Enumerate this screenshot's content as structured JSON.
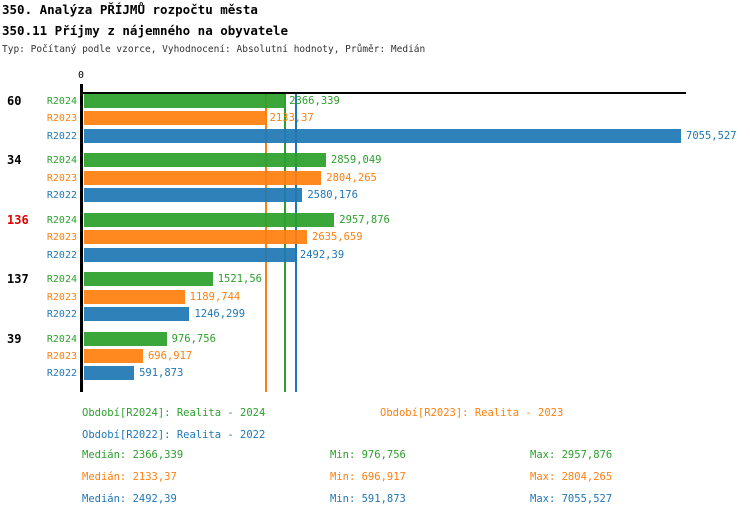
{
  "header": {
    "title": "350. Analýza PŘÍJMŮ rozpočtu města",
    "subtitle": "350.11 Příjmy z nájemného na obyvatele",
    "meta": "Typ: Počítaný podle vzorce, Vyhodnocení: Absolutní hodnoty, Průměr: Medián"
  },
  "colors": {
    "r2024": "#2ca02c",
    "r2023": "#ff7f0e",
    "r2022": "#1f77b4",
    "highlight": "#e00000",
    "axis": "#000000"
  },
  "chart_data": {
    "type": "bar",
    "orientation": "horizontal",
    "title": "350. Analýza PŘÍJMŮ rozpočtu města",
    "subtitle": "350.11 Příjmy z nájemného na obyvatele",
    "xlim": [
      0,
      7300
    ],
    "x_tick_labels": [
      "0"
    ],
    "series": [
      "R2024",
      "R2023",
      "R2022"
    ],
    "groups": [
      {
        "label": "60",
        "highlighted": false,
        "bars": [
          {
            "series": "R2024",
            "value": 2366.339,
            "value_label": "2366,339"
          },
          {
            "series": "R2023",
            "value": 2133.37,
            "value_label": "2133,37"
          },
          {
            "series": "R2022",
            "value": 7055.527,
            "value_label": "7055,527"
          }
        ]
      },
      {
        "label": "34",
        "highlighted": false,
        "bars": [
          {
            "series": "R2024",
            "value": 2859.049,
            "value_label": "2859,049"
          },
          {
            "series": "R2023",
            "value": 2804.265,
            "value_label": "2804,265"
          },
          {
            "series": "R2022",
            "value": 2580.176,
            "value_label": "2580,176"
          }
        ]
      },
      {
        "label": "136",
        "highlighted": true,
        "bars": [
          {
            "series": "R2024",
            "value": 2957.876,
            "value_label": "2957,876"
          },
          {
            "series": "R2023",
            "value": 2635.659,
            "value_label": "2635,659"
          },
          {
            "series": "R2022",
            "value": 2492.39,
            "value_label": "2492,39"
          }
        ]
      },
      {
        "label": "137",
        "highlighted": false,
        "bars": [
          {
            "series": "R2024",
            "value": 1521.56,
            "value_label": "1521,56"
          },
          {
            "series": "R2023",
            "value": 1189.744,
            "value_label": "1189,744"
          },
          {
            "series": "R2022",
            "value": 1246.299,
            "value_label": "1246,299"
          }
        ]
      },
      {
        "label": "39",
        "highlighted": false,
        "bars": [
          {
            "series": "R2024",
            "value": 976.756,
            "value_label": "976,756"
          },
          {
            "series": "R2023",
            "value": 696.917,
            "value_label": "696,917"
          },
          {
            "series": "R2022",
            "value": 591.873,
            "value_label": "591,873"
          }
        ]
      }
    ],
    "medians": [
      {
        "series": "R2024",
        "value": 2366.339
      },
      {
        "series": "R2023",
        "value": 2133.37
      },
      {
        "series": "R2022",
        "value": 2492.39
      }
    ],
    "stats": [
      {
        "series": "R2024",
        "median": 2366.339,
        "min": 976.756,
        "max": 2957.876
      },
      {
        "series": "R2023",
        "median": 2133.37,
        "min": 696.917,
        "max": 2804.265
      },
      {
        "series": "R2022",
        "median": 2492.39,
        "min": 591.873,
        "max": 7055.527
      }
    ]
  },
  "legend": {
    "periods": [
      {
        "series": "R2024",
        "label": "Období[R2024]: Realita - 2024"
      },
      {
        "series": "R2023",
        "label": "Období[R2023]: Realita - 2023"
      },
      {
        "series": "R2022",
        "label": "Období[R2022]: Realita - 2022"
      }
    ],
    "stats": [
      {
        "series": "R2024",
        "median_label": "Medián: 2366,339",
        "min_label": "Min: 976,756",
        "max_label": "Max: 2957,876"
      },
      {
        "series": "R2023",
        "median_label": "Medián: 2133,37",
        "min_label": "Min: 696,917",
        "max_label": "Max: 2804,265"
      },
      {
        "series": "R2022",
        "median_label": "Medián: 2492,39",
        "min_label": "Min: 591,873",
        "max_label": "Max: 7055,527"
      }
    ]
  }
}
